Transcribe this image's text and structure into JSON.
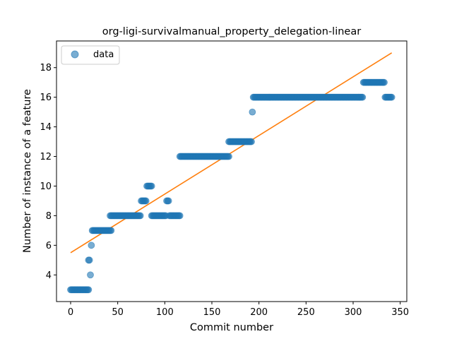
{
  "chart_data": {
    "type": "scatter",
    "title": "org-ligi-survivalmanual_property_delegation-linear",
    "xlabel": "Commit number",
    "ylabel": "Number of instance of a feature",
    "xlim": [
      -15,
      357
    ],
    "ylim": [
      2.2,
      19.8
    ],
    "xticks": [
      0,
      50,
      100,
      150,
      200,
      250,
      300,
      350
    ],
    "yticks": [
      4,
      6,
      8,
      10,
      12,
      14,
      16,
      18
    ],
    "grid": false,
    "legend": {
      "placement": "top-left",
      "entries": [
        "data"
      ]
    },
    "colors": {
      "data": "#1f77b4",
      "fit": "#ff7f0e"
    },
    "series": [
      {
        "name": "data",
        "kind": "scatter",
        "runs": [
          {
            "x_from": 0,
            "x_to": 19,
            "y": 3
          },
          {
            "x_from": 19,
            "x_to": 20,
            "y": 5
          },
          {
            "x_from": 21,
            "x_to": 21,
            "y": 4
          },
          {
            "x_from": 22,
            "x_to": 22,
            "y": 6
          },
          {
            "x_from": 23,
            "x_to": 43,
            "y": 7
          },
          {
            "x_from": 42,
            "x_to": 74,
            "y": 8
          },
          {
            "x_from": 75,
            "x_to": 80,
            "y": 9
          },
          {
            "x_from": 81,
            "x_to": 86,
            "y": 10
          },
          {
            "x_from": 86,
            "x_to": 101,
            "y": 8
          },
          {
            "x_from": 102,
            "x_to": 104,
            "y": 9
          },
          {
            "x_from": 105,
            "x_to": 116,
            "y": 8
          },
          {
            "x_from": 116,
            "x_to": 168,
            "y": 12
          },
          {
            "x_from": 168,
            "x_to": 192,
            "y": 13
          },
          {
            "x_from": 193,
            "x_to": 193,
            "y": 15
          },
          {
            "x_from": 194,
            "x_to": 310,
            "y": 16
          },
          {
            "x_from": 311,
            "x_to": 333,
            "y": 17
          },
          {
            "x_from": 334,
            "x_to": 341,
            "y": 16
          }
        ]
      },
      {
        "name": "",
        "kind": "line",
        "x": [
          0,
          341
        ],
        "y": [
          5.5,
          19.0
        ]
      }
    ]
  }
}
